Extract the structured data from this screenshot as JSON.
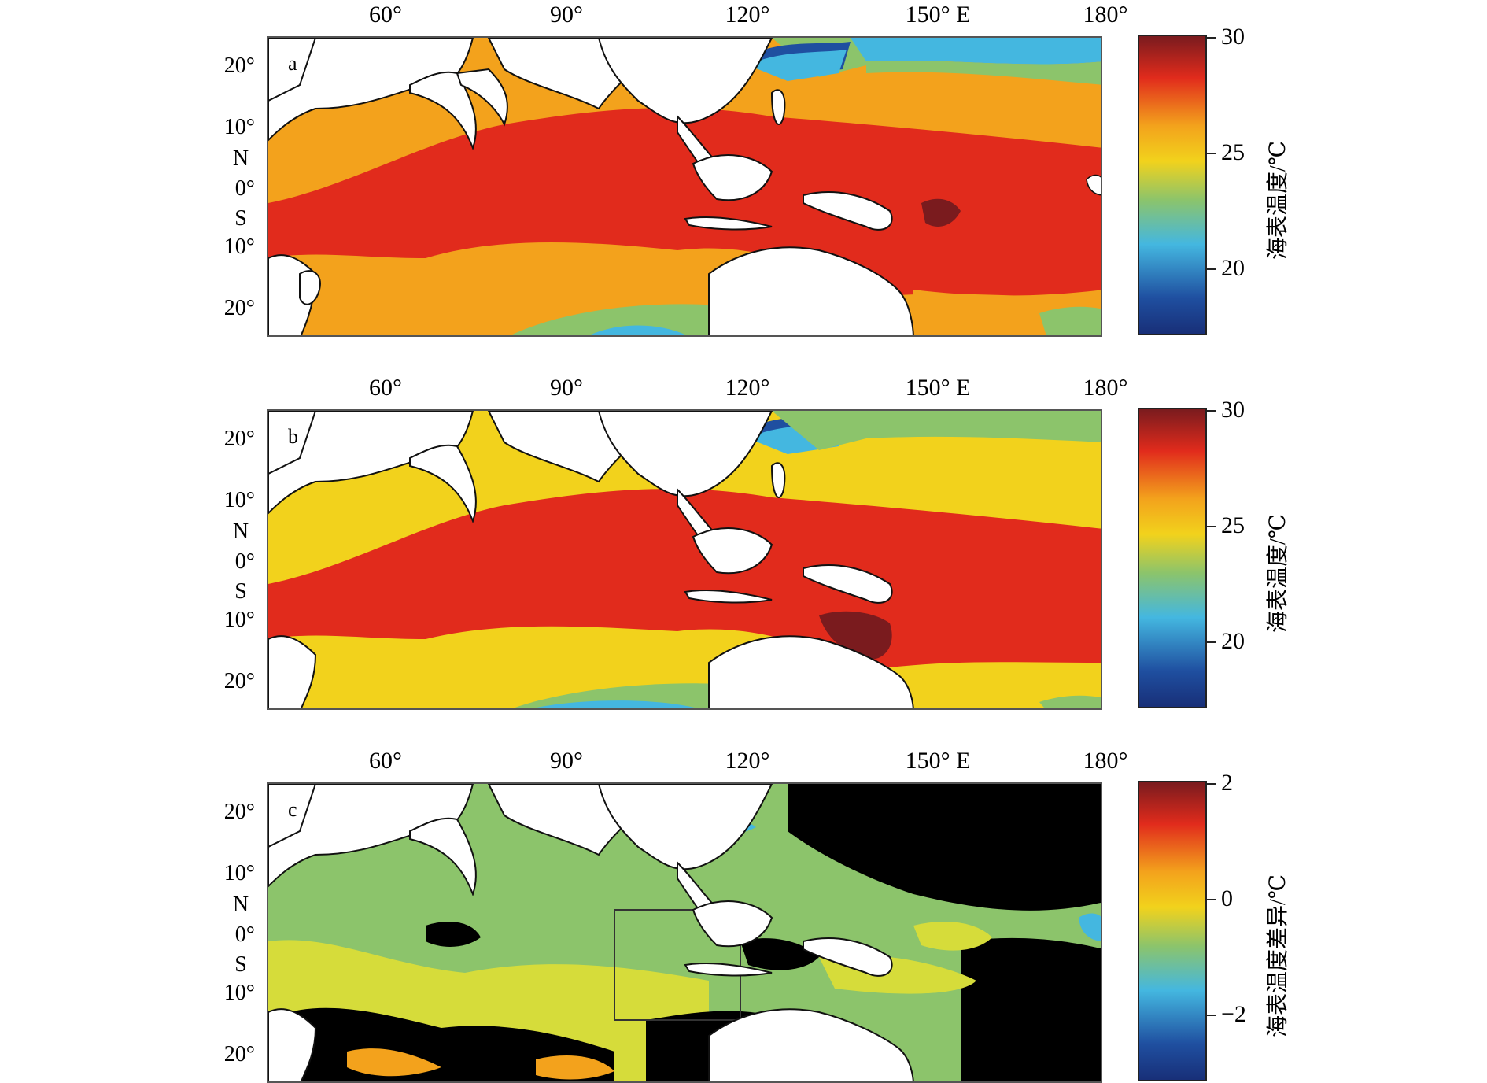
{
  "lon_labels": [
    "60°",
    "90°",
    "120°",
    "150° E",
    "180°"
  ],
  "lat_labels": {
    "n20": "20°",
    "n10": "10°",
    "n": "N",
    "eq": "0°",
    "s": "S",
    "s10": "10°",
    "s20": "20°"
  },
  "panels": [
    {
      "id": "a",
      "colorbar_title": "海表温度/℃",
      "colorbar_ticks": [
        "30",
        "25",
        "20"
      ]
    },
    {
      "id": "b",
      "colorbar_title": "海表温度/℃",
      "colorbar_ticks": [
        "30",
        "25",
        "20"
      ]
    },
    {
      "id": "c",
      "colorbar_title": "海表温度差异/℃",
      "colorbar_ticks": [
        "2",
        "0",
        "−2"
      ]
    }
  ],
  "colors": {
    "very_warm": "#7a1b1e",
    "warm_red": "#e12b1c",
    "orange": "#f3a21c",
    "yellow": "#f2d21c",
    "green": "#8cc46b",
    "cyan": "#44b7e0",
    "blue": "#1f4fa0",
    "land": "#ffffff",
    "anomaly_black": "#000000"
  }
}
